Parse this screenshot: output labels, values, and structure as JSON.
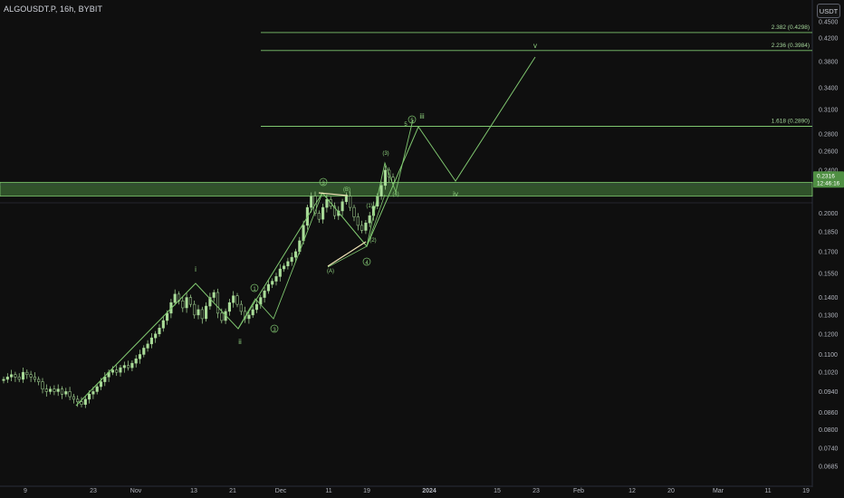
{
  "header": {
    "title": "ALGOUSDT.P, 16h, BYBIT",
    "unit_label": "USDT"
  },
  "colors": {
    "background": "#0f0f0f",
    "candle": "#a9dc98",
    "wave": "#7fc66f",
    "zone_fill": "#4c8a42",
    "fib": "#7fc66f",
    "axis_text": "#b2b5be"
  },
  "chart_data": {
    "type": "candlestick",
    "scale": "log",
    "y_ticks": [
      "0.4500",
      "0.4200",
      "0.3800",
      "0.3400",
      "0.3100",
      "0.2800",
      "0.2600",
      "0.2400",
      "0.2000",
      "0.1850",
      "0.1700",
      "0.1550",
      "0.1400",
      "0.1300",
      "0.1200",
      "0.1100",
      "0.1020",
      "0.0940",
      "0.0860",
      "0.0800",
      "0.0740",
      "0.0685"
    ],
    "x_ticks": [
      "9",
      "23",
      "Nov",
      "13",
      "21",
      "Dec",
      "11",
      "19",
      "2024",
      "15",
      "23",
      "Feb",
      "12",
      "20",
      "Mar",
      "11",
      "19"
    ],
    "close_series": [
      0.099,
      0.1,
      0.101,
      0.1,
      0.099,
      0.102,
      0.101,
      0.1,
      0.099,
      0.098,
      0.095,
      0.094,
      0.095,
      0.094,
      0.095,
      0.093,
      0.094,
      0.092,
      0.091,
      0.09,
      0.089,
      0.091,
      0.093,
      0.094,
      0.096,
      0.098,
      0.1,
      0.102,
      0.103,
      0.102,
      0.104,
      0.105,
      0.104,
      0.106,
      0.108,
      0.11,
      0.113,
      0.115,
      0.118,
      0.12,
      0.123,
      0.127,
      0.131,
      0.137,
      0.142,
      0.138,
      0.134,
      0.14,
      0.136,
      0.13,
      0.133,
      0.128,
      0.135,
      0.14,
      0.143,
      0.131,
      0.127,
      0.132,
      0.137,
      0.141,
      0.136,
      0.132,
      0.128,
      0.13,
      0.133,
      0.136,
      0.14,
      0.144,
      0.148,
      0.15,
      0.153,
      0.158,
      0.16,
      0.163,
      0.166,
      0.17,
      0.178,
      0.19,
      0.205,
      0.215,
      0.2,
      0.195,
      0.205,
      0.212,
      0.206,
      0.198,
      0.202,
      0.21,
      0.215,
      0.205,
      0.197,
      0.19,
      0.186,
      0.192,
      0.198,
      0.206,
      0.215,
      0.225,
      0.24,
      0.233,
      0.228
    ],
    "current_price": {
      "value": "0.2316",
      "countdown": "12:46:16"
    },
    "fib_levels": [
      {
        "label": "2.382 (0.4298)",
        "value": 0.4298
      },
      {
        "label": "2.236 (0.3984)",
        "value": 0.3984
      },
      {
        "label": "1.618 (0.2890)",
        "value": 0.289
      }
    ],
    "zone": {
      "low": 0.215,
      "high": 0.228
    },
    "waves": {
      "primary": [
        "i",
        "ii",
        "iii",
        "iv",
        "v"
      ],
      "intermediate": [
        "1",
        "2",
        "3",
        "4",
        "5",
        "3",
        "4",
        "5"
      ],
      "minor": [
        "(3)",
        "(4)",
        "(5)",
        "(1)",
        "(2)",
        "(A)",
        "(B)"
      ]
    }
  }
}
